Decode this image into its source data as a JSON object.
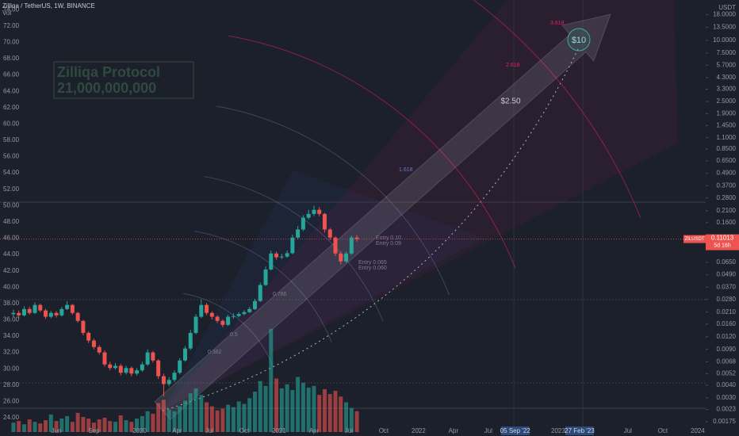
{
  "chart_data": {
    "type": "candlestick",
    "title": "Zilliqa / TetherUS, 1W, BINANCE",
    "volume_name": "Vol",
    "currency": "USDT",
    "symbol": "ZILUSDT",
    "last_price": 0.11013,
    "countdown": "5d 16h",
    "log_scale": true,
    "up_color": "#26a69a",
    "down_color": "#ef5350",
    "x": [
      -47,
      -45,
      -43,
      -41,
      -39,
      -37,
      -35,
      -33,
      -31,
      -29,
      -27,
      -25,
      -23,
      -21,
      -19,
      -17,
      -15,
      -13,
      -11,
      -9,
      -7,
      -5,
      -3,
      -1,
      1,
      3,
      5,
      7,
      9,
      11,
      13,
      15,
      17,
      19,
      21,
      23,
      25,
      27,
      29,
      31,
      33,
      35,
      37,
      39,
      41,
      43,
      45,
      47,
      49,
      51,
      53,
      55,
      57,
      59,
      61,
      63,
      65,
      67,
      69,
      71,
      73,
      75,
      77,
      79,
      81
    ],
    "open": [
      0.02,
      0.0206,
      0.0195,
      0.0225,
      0.0206,
      0.0247,
      0.0218,
      0.0189,
      0.0206,
      0.0195,
      0.0225,
      0.0247,
      0.0206,
      0.0172,
      0.0131,
      0.011,
      0.0095,
      0.0084,
      0.0064,
      0.0059,
      0.0062,
      0.0053,
      0.0059,
      0.0052,
      0.0056,
      0.0064,
      0.0084,
      0.007,
      0.0049,
      0.0041,
      0.0045,
      0.0053,
      0.007,
      0.0092,
      0.0131,
      0.0189,
      0.0247,
      0.0206,
      0.0189,
      0.0172,
      0.0157,
      0.0189,
      0.0192,
      0.0201,
      0.021,
      0.0225,
      0.027,
      0.0388,
      0.0552,
      0.0794,
      0.0728,
      0.074,
      0.08,
      0.114,
      0.137,
      0.179,
      0.195,
      0.214,
      0.195,
      0.137,
      0.114,
      0.0794,
      0.0664,
      0.0794,
      0.114
    ],
    "high": [
      0.0222,
      0.0218,
      0.024,
      0.0236,
      0.0262,
      0.0255,
      0.0226,
      0.0215,
      0.0214,
      0.0236,
      0.0268,
      0.0252,
      0.0211,
      0.0176,
      0.0136,
      0.0115,
      0.0099,
      0.0088,
      0.0068,
      0.0066,
      0.0065,
      0.0062,
      0.0061,
      0.0059,
      0.0068,
      0.009,
      0.0087,
      0.0072,
      0.0052,
      0.0048,
      0.0056,
      0.0074,
      0.0097,
      0.014,
      0.02,
      0.028,
      0.0258,
      0.0214,
      0.0195,
      0.0178,
      0.0197,
      0.0204,
      0.021,
      0.0219,
      0.0236,
      0.0284,
      0.041,
      0.059,
      0.085,
      0.083,
      0.079,
      0.085,
      0.122,
      0.148,
      0.19,
      0.214,
      0.235,
      0.228,
      0.2,
      0.142,
      0.117,
      0.083,
      0.083,
      0.119,
      0.12
    ],
    "low": [
      0.0188,
      0.0182,
      0.019,
      0.0198,
      0.0201,
      0.021,
      0.018,
      0.0183,
      0.0186,
      0.019,
      0.022,
      0.0198,
      0.0165,
      0.0124,
      0.0104,
      0.009,
      0.008,
      0.0061,
      0.0056,
      0.0057,
      0.005,
      0.0051,
      0.0049,
      0.005,
      0.0054,
      0.0062,
      0.0067,
      0.0046,
      0.0031,
      0.0039,
      0.0043,
      0.0051,
      0.0068,
      0.0089,
      0.0127,
      0.0183,
      0.0196,
      0.0178,
      0.0164,
      0.0149,
      0.0153,
      0.0181,
      0.0186,
      0.0195,
      0.0205,
      0.022,
      0.0265,
      0.038,
      0.054,
      0.069,
      0.07,
      0.072,
      0.078,
      0.11,
      0.132,
      0.172,
      0.186,
      0.185,
      0.128,
      0.108,
      0.075,
      0.062,
      0.064,
      0.077,
      0.104
    ],
    "close": [
      0.0206,
      0.0195,
      0.0225,
      0.0206,
      0.0247,
      0.0218,
      0.0189,
      0.0206,
      0.0195,
      0.0225,
      0.0247,
      0.0206,
      0.0172,
      0.0131,
      0.011,
      0.0095,
      0.0084,
      0.0064,
      0.0059,
      0.0062,
      0.0053,
      0.0059,
      0.0052,
      0.0056,
      0.0064,
      0.0084,
      0.007,
      0.0049,
      0.0041,
      0.0045,
      0.0053,
      0.007,
      0.0092,
      0.0131,
      0.0189,
      0.0247,
      0.0206,
      0.0189,
      0.0172,
      0.0157,
      0.0189,
      0.0192,
      0.0201,
      0.021,
      0.0225,
      0.027,
      0.0388,
      0.0552,
      0.0794,
      0.0728,
      0.074,
      0.08,
      0.114,
      0.137,
      0.179,
      0.195,
      0.214,
      0.195,
      0.137,
      0.114,
      0.0794,
      0.0664,
      0.0794,
      0.114,
      0.11
    ],
    "volume": [
      23.4,
      23.6,
      23.2,
      23.8,
      23.5,
      23.3,
      23.7,
      24.4,
      23.6,
      23.9,
      24.2,
      23.5,
      24.6,
      24.1,
      23.9,
      23.4,
      23.8,
      24.0,
      23.6,
      23.5,
      24.3,
      23.7,
      23.5,
      23.9,
      24.2,
      24.8,
      24.5,
      25.8,
      26.2,
      25.0,
      24.8,
      25.4,
      26.1,
      27.0,
      27.6,
      26.8,
      25.9,
      25.4,
      24.9,
      25.1,
      25.6,
      25.3,
      26.0,
      25.7,
      26.4,
      27.2,
      28.5,
      27.9,
      34.9,
      28.8,
      27.6,
      28.1,
      27.4,
      29.0,
      28.3,
      27.7,
      27.9,
      26.8,
      27.5,
      26.9,
      27.3,
      26.6,
      25.9,
      25.2,
      24.8
    ],
    "xlim": [
      -52,
      211
    ],
    "xticks": [
      {
        "value": -31,
        "label": "Jun"
      },
      {
        "value": -17,
        "label": "Sep"
      },
      {
        "value": 0,
        "label": "2020"
      },
      {
        "value": 14,
        "label": "Apr"
      },
      {
        "value": 26,
        "label": "Jul"
      },
      {
        "value": 39,
        "label": "Oct"
      },
      {
        "value": 52,
        "label": "2021"
      },
      {
        "value": 65,
        "label": "Apr"
      },
      {
        "value": 78,
        "label": "Jul"
      },
      {
        "value": 91,
        "label": "Oct"
      },
      {
        "value": 104,
        "label": "2022"
      },
      {
        "value": 117,
        "label": "Apr"
      },
      {
        "value": 130,
        "label": "Jul"
      },
      {
        "value": 140,
        "label": "05 Sep '22"
      },
      {
        "value": 156,
        "label": "2023"
      },
      {
        "value": 164,
        "label": "27 Feb '23"
      },
      {
        "value": 182,
        "label": "Jul"
      },
      {
        "value": 195,
        "label": "Oct"
      },
      {
        "value": 208,
        "label": "2024"
      }
    ],
    "ylim": [
      0.00138,
      23.3
    ],
    "yticks": [
      {
        "value": 18,
        "label": "18.0000"
      },
      {
        "value": 13.5,
        "label": "13.5000"
      },
      {
        "value": 10,
        "label": "10.0000"
      },
      {
        "value": 7.5,
        "label": "7.5000"
      },
      {
        "value": 5.7,
        "label": "5.7000"
      },
      {
        "value": 4.3,
        "label": "4.3000"
      },
      {
        "value": 3.3,
        "label": "3.3000"
      },
      {
        "value": 2.5,
        "label": "2.5000"
      },
      {
        "value": 1.9,
        "label": "1.9000"
      },
      {
        "value": 1.45,
        "label": "1.4500"
      },
      {
        "value": 1.1,
        "label": "1.1000"
      },
      {
        "value": 0.85,
        "label": "0.8500"
      },
      {
        "value": 0.65,
        "label": "0.6500"
      },
      {
        "value": 0.49,
        "label": "0.4900"
      },
      {
        "value": 0.37,
        "label": "0.3700"
      },
      {
        "value": 0.28,
        "label": "0.2800"
      },
      {
        "value": 0.21,
        "label": "0.2100"
      },
      {
        "value": 0.16,
        "label": "0.1600"
      },
      {
        "value": 0.065,
        "label": "0.0650"
      },
      {
        "value": 0.049,
        "label": "0.0490"
      },
      {
        "value": 0.037,
        "label": "0.0370"
      },
      {
        "value": 0.028,
        "label": "0.0280"
      },
      {
        "value": 0.021,
        "label": "0.0210"
      },
      {
        "value": 0.016,
        "label": "0.0160"
      },
      {
        "value": 0.012,
        "label": "0.0120"
      },
      {
        "value": 0.009,
        "label": "0.0090"
      },
      {
        "value": 0.0068,
        "label": "0.0068"
      },
      {
        "value": 0.0052,
        "label": "0.0052"
      },
      {
        "value": 0.004,
        "label": "0.0040"
      },
      {
        "value": 0.003,
        "label": "0.0030"
      },
      {
        "value": 0.0023,
        "label": "0.0023"
      },
      {
        "value": 0.00175,
        "label": "0.00175"
      }
    ],
    "y2lim": [
      22.25,
      74.8
    ],
    "y2ticks": [
      {
        "value": 74,
        "label": "74.00"
      },
      {
        "value": 72,
        "label": "72.00"
      },
      {
        "value": 70,
        "label": "70.00"
      },
      {
        "value": 68,
        "label": "68.00"
      },
      {
        "value": 66,
        "label": "66.00"
      },
      {
        "value": 64,
        "label": "64.00"
      },
      {
        "value": 62,
        "label": "62.00"
      },
      {
        "value": 60,
        "label": "60.00"
      },
      {
        "value": 58,
        "label": "58.00"
      },
      {
        "value": 56,
        "label": "56.00"
      },
      {
        "value": 54,
        "label": "54.00"
      },
      {
        "value": 52,
        "label": "52.00"
      },
      {
        "value": 50,
        "label": "50.00"
      },
      {
        "value": 48,
        "label": "48.00"
      },
      {
        "value": 46,
        "label": "46.00"
      },
      {
        "value": 44,
        "label": "44.00"
      },
      {
        "value": 42,
        "label": "42.00"
      },
      {
        "value": 40,
        "label": "40.00"
      },
      {
        "value": 38,
        "label": "38.00"
      },
      {
        "value": 36,
        "label": "36.00"
      },
      {
        "value": 34,
        "label": "34.00"
      },
      {
        "value": 32,
        "label": "32.00"
      },
      {
        "value": 30,
        "label": "30.00"
      },
      {
        "value": 28,
        "label": "28.00"
      },
      {
        "value": 26,
        "label": "26.00"
      },
      {
        "value": 24,
        "label": "24.00"
      }
    ],
    "annotations": [
      "Zilliqa Protocol",
      "21,000,000,000",
      "$10",
      "$2.50",
      "Entry 0.10",
      "Entry 0.09",
      "Entry 0.065",
      "Entry 0.060",
      "0.382",
      "0.5",
      "0.786",
      "1.618",
      "2.618",
      "3.618"
    ]
  }
}
